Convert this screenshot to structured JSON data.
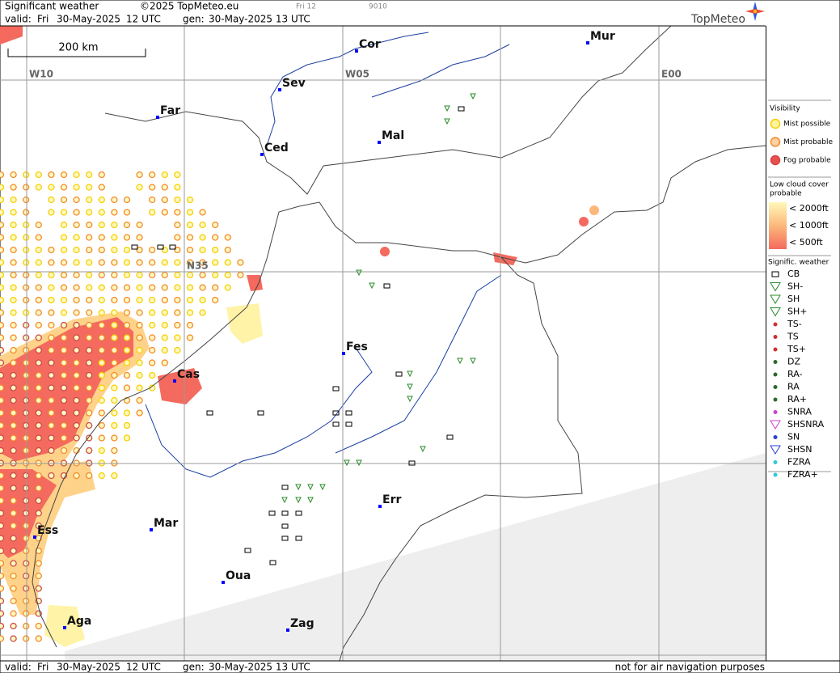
{
  "header": {
    "title": "Significant weather",
    "copyright": "©2025 TopMeteo.eu",
    "run_label": "Fri 12",
    "code": "9010",
    "valid_label": "valid:",
    "valid_day": "Fri",
    "valid_date": "30-May-2025",
    "valid_time": "12 UTC",
    "gen_label": "gen:",
    "gen_datetime": "30-May-2025 13 UTC",
    "brand": "TopMeteo"
  },
  "map": {
    "scale_label": "200 km",
    "grid_labels": [
      "W10",
      "W05",
      "E00",
      "N35"
    ],
    "cities": [
      "Cor",
      "Mur",
      "Sev",
      "Far",
      "Mal",
      "Ced",
      "Fes",
      "Cas",
      "Err",
      "Mar",
      "Ess",
      "Oua",
      "Aga",
      "Zag"
    ]
  },
  "legend": {
    "visibility": {
      "title": "Visibility",
      "items": [
        "Mist possible",
        "Mist probable",
        "Fog probable"
      ]
    },
    "low_cloud": {
      "title_line1": "Low cloud cover",
      "title_line2": "probable",
      "items": [
        "< 2000ft",
        "< 1000ft",
        "<   500ft"
      ]
    },
    "weather": {
      "title": "Signific. weather",
      "items": [
        "CB",
        "SH-",
        "SH",
        "SH+",
        "TS-",
        "TS",
        "TS+",
        "DZ",
        "RA-",
        "RA",
        "RA+",
        "SNRA",
        "SHSNRA",
        "SN",
        "SHSN",
        "FZRA",
        "FZRA+"
      ]
    }
  },
  "footer": {
    "valid_label": "valid:",
    "valid_day": "Fri",
    "valid_date": "30-May-2025",
    "valid_time": "12 UTC",
    "gen_label": "gen:",
    "gen_datetime": "30-May-2025 13 UTC",
    "note": "not for air navigation purposes"
  }
}
